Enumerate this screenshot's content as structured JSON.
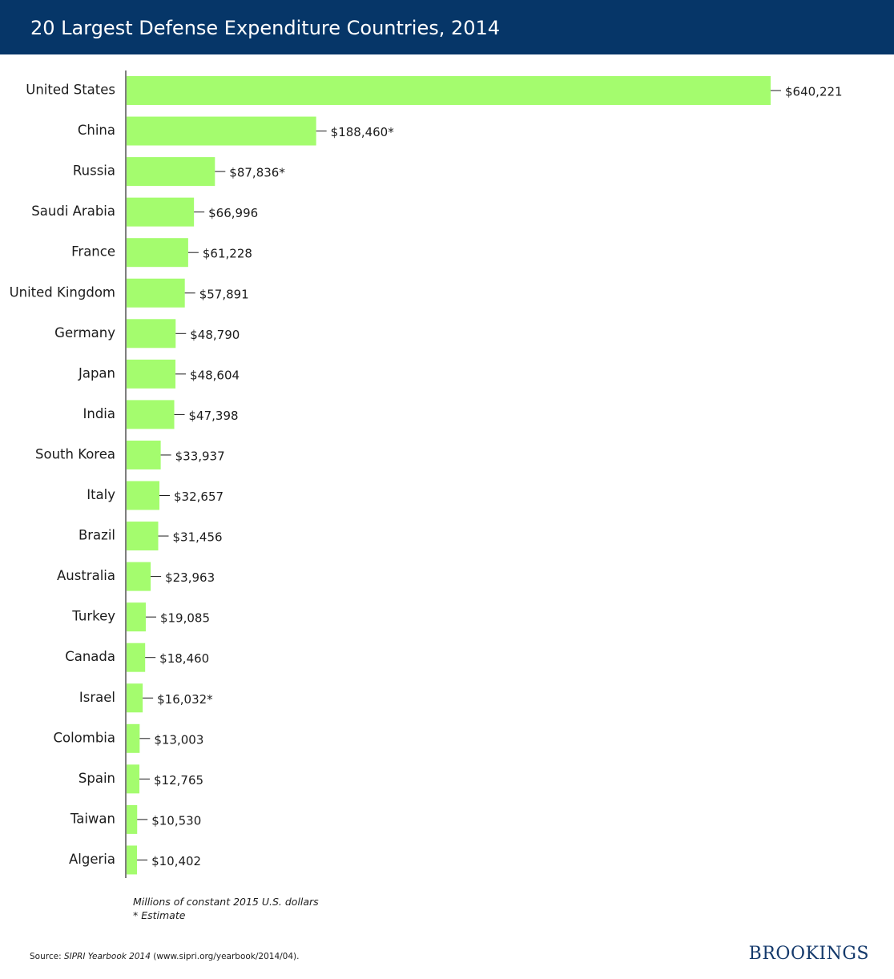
{
  "header": {
    "title": "20 Largest Defense Expenditure Countries, 2014"
  },
  "colors": {
    "header_bg": "#063668",
    "bar": "#A4FC6E",
    "axis": "#555555",
    "logo": "#14396B"
  },
  "chart_data": {
    "type": "bar",
    "orientation": "horizontal",
    "title": "20 Largest Defense Expenditure Countries, 2014",
    "categories": [
      "United States",
      "China",
      "Russia",
      "Saudi Arabia",
      "France",
      "United Kingdom",
      "Germany",
      "Japan",
      "India",
      "South Korea",
      "Italy",
      "Brazil",
      "Australia",
      "Turkey",
      "Canada",
      "Israel",
      "Colombia",
      "Spain",
      "Taiwan",
      "Algeria"
    ],
    "values": [
      640221,
      188460,
      87836,
      66996,
      61228,
      57891,
      48790,
      48604,
      47398,
      33937,
      32657,
      31456,
      23963,
      19085,
      18460,
      16032,
      13003,
      12765,
      10530,
      10402
    ],
    "value_labels": [
      "$640,221",
      "$188,460*",
      "$87,836*",
      "$66,996",
      "$61,228",
      "$57,891",
      "$48,790",
      "$48,604",
      "$47,398",
      "$33,937",
      "$32,657",
      "$31,456",
      "$23,963",
      "$19,085",
      "$18,460",
      "$16,032*",
      "$13,003",
      "$12,765",
      "$10,530",
      "$10,402"
    ],
    "xlim": [
      0,
      640221
    ],
    "grid": false,
    "legend": "none"
  },
  "notes": {
    "units": "Millions of constant 2015 U.S. dollars",
    "estimate": "* Estimate"
  },
  "source": {
    "prefix": "Source: ",
    "publication": "SIPRI Yearbook 2014",
    "suffix": " (www.sipri.org/yearbook/2014/04)."
  },
  "logo": {
    "text": "BROOKINGS"
  }
}
